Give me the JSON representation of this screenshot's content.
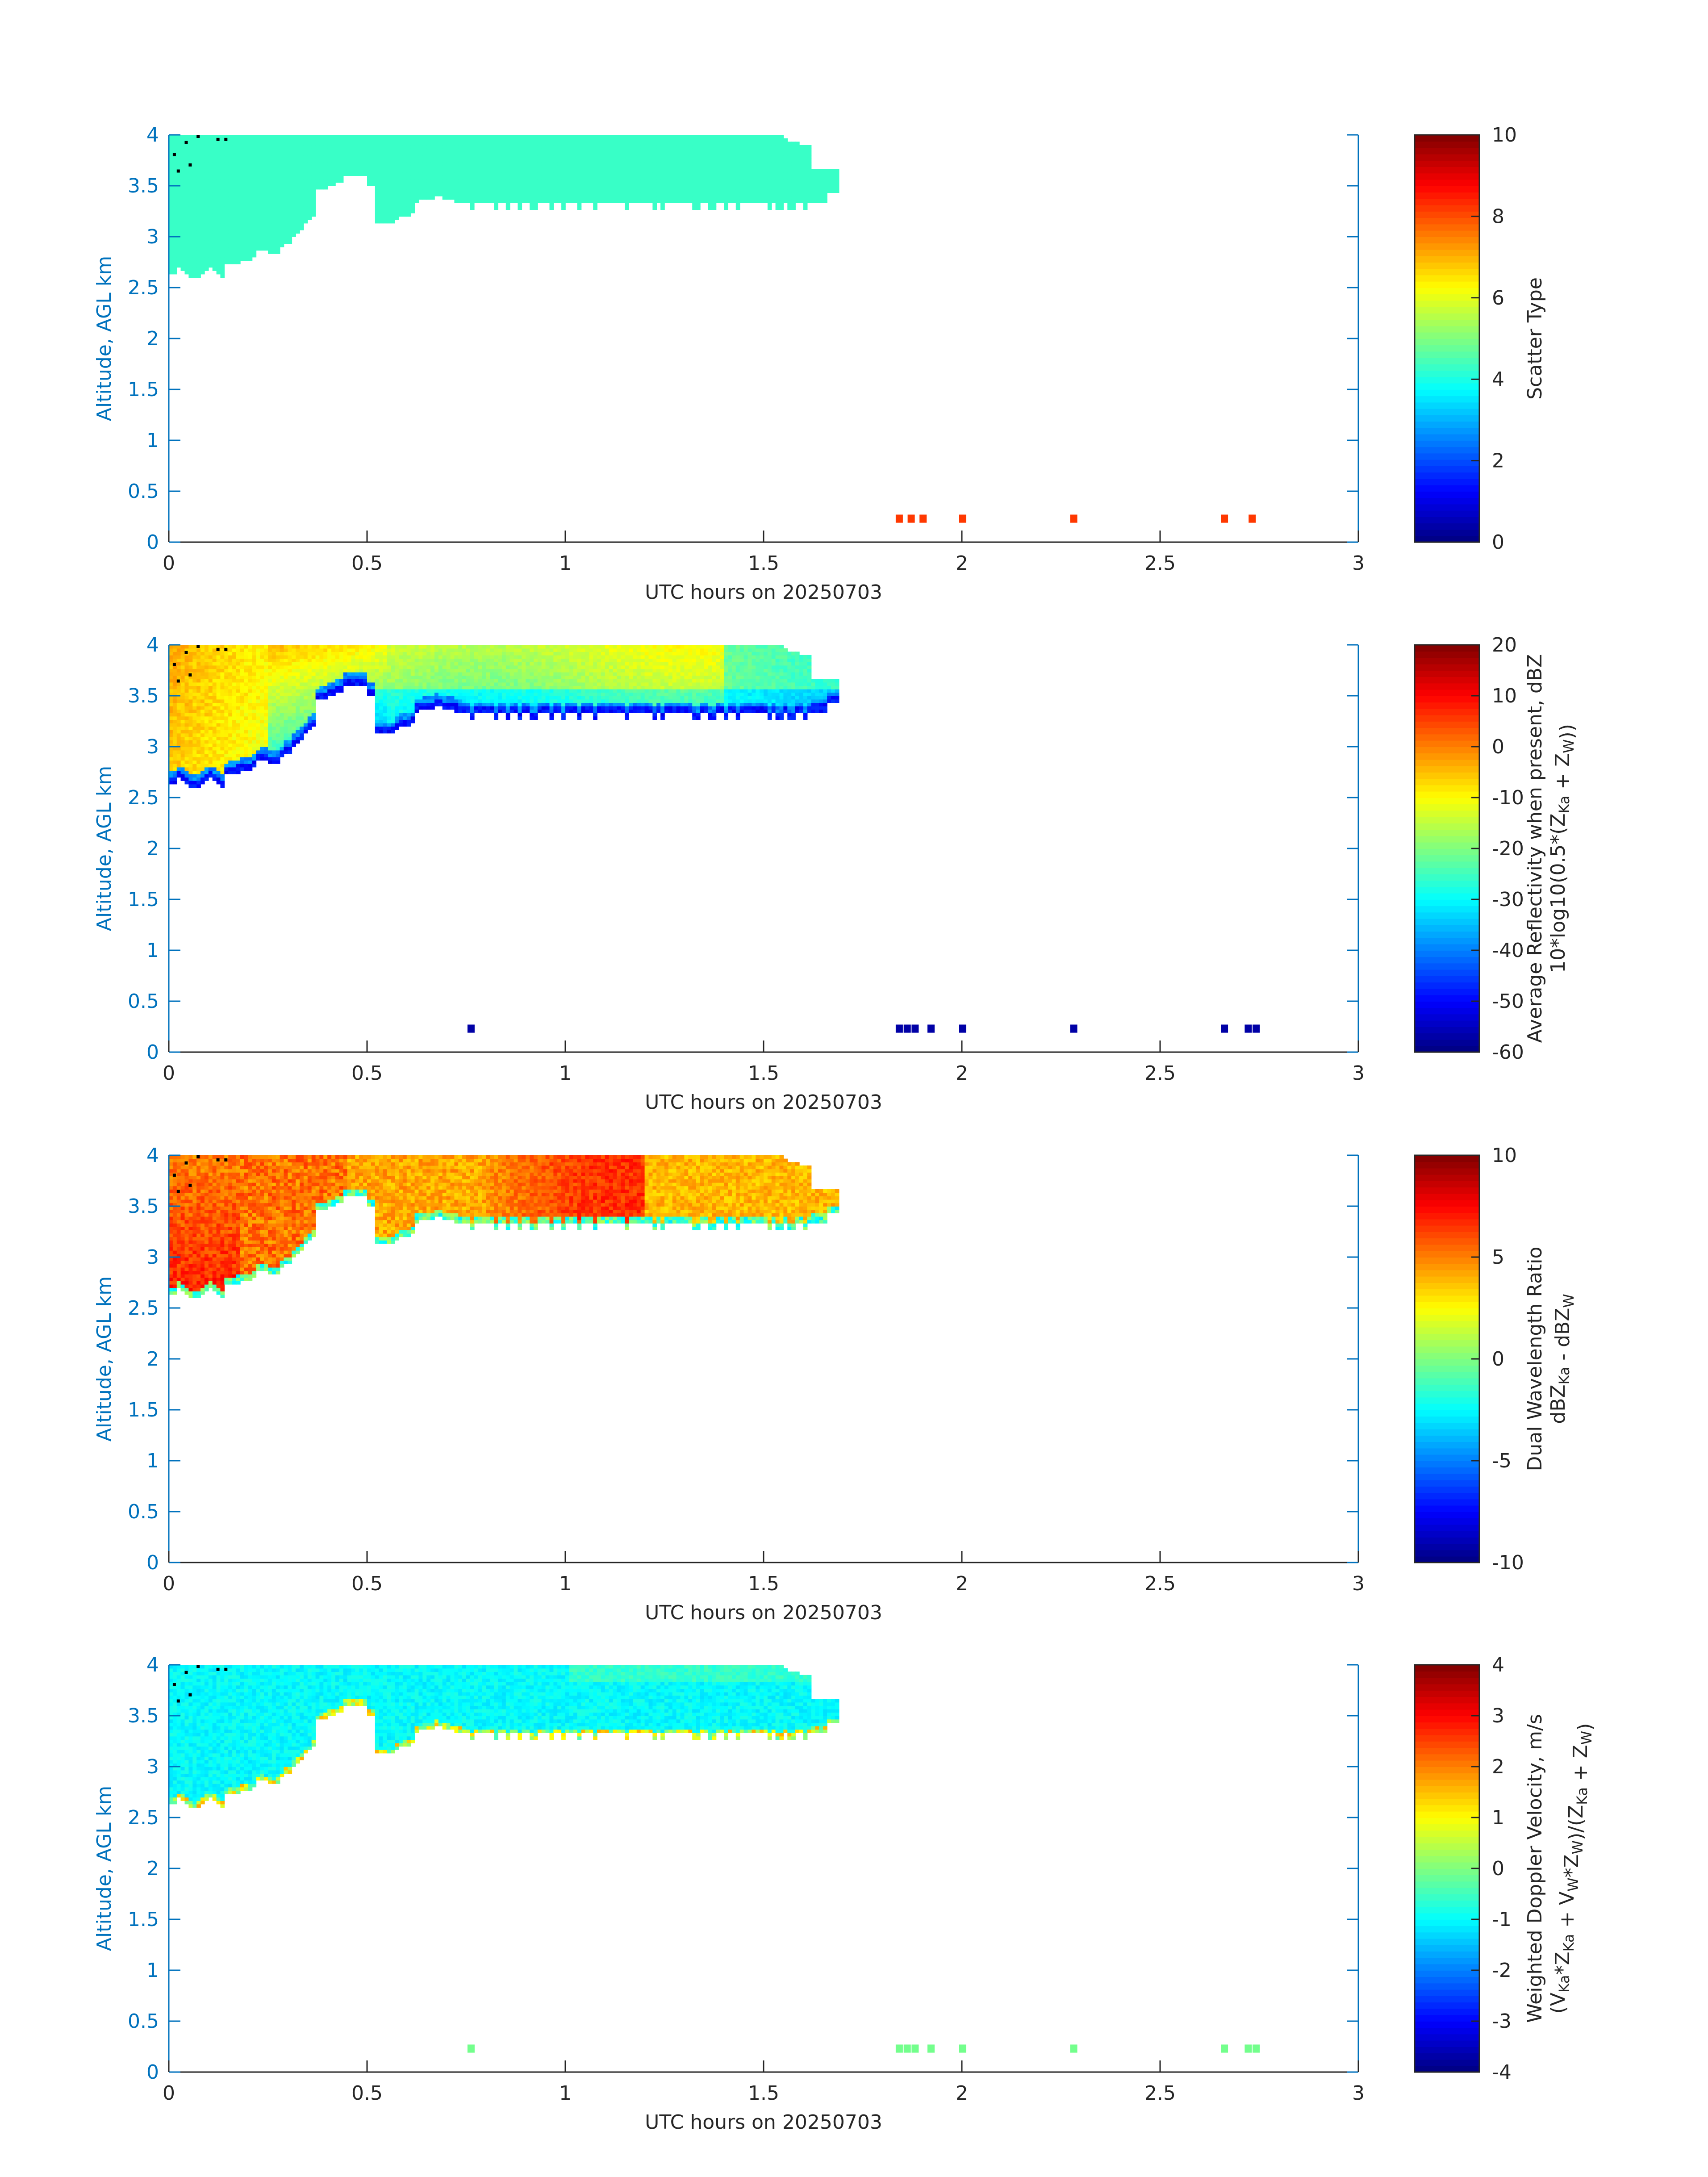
{
  "figure": {
    "panel_count": 4
  },
  "colors": {
    "axis_blue": "#0072BD",
    "axis_black": "#262626",
    "scatter_cyan": "#1AFFD8",
    "scatter_orange": "#FF3C14"
  },
  "chart_data": [
    {
      "type": "heatmap",
      "id": "scatter-type",
      "title": "",
      "xlabel": "UTC hours on 20250703",
      "ylabel": "Altitude, AGL km",
      "xlim": [
        0,
        3
      ],
      "ylim": [
        0,
        4
      ],
      "xticks": [
        "0",
        "0.5",
        "1",
        "1.5",
        "2",
        "2.5",
        "3"
      ],
      "yticks": [
        "0",
        "0.5",
        "1",
        "1.5",
        "2",
        "2.5",
        "3",
        "3.5",
        "4"
      ],
      "colorbar": {
        "label_lines": [
          "Scatter Type"
        ],
        "ticks": [
          "0",
          "2",
          "4",
          "6",
          "8",
          "10"
        ],
        "range": [
          0,
          10
        ]
      },
      "field": "scatter",
      "cloud_value": 4.3,
      "surface_value": 8.2,
      "surface_times": [
        1.84,
        1.87,
        1.9,
        2.0,
        2.28,
        2.66,
        2.73
      ]
    },
    {
      "type": "heatmap",
      "id": "reflectivity",
      "title": "",
      "xlabel": "UTC hours on 20250703",
      "ylabel": "Altitude, AGL km",
      "xlim": [
        0,
        3
      ],
      "ylim": [
        0,
        4
      ],
      "xticks": [
        "0",
        "0.5",
        "1",
        "1.5",
        "2",
        "2.5",
        "3"
      ],
      "yticks": [
        "0",
        "0.5",
        "1",
        "1.5",
        "2",
        "2.5",
        "3",
        "3.5",
        "4"
      ],
      "colorbar": {
        "label_lines": [
          "Average Reflectivity when present, dBZ",
          "10*log10(0.5*(Z_{Ka} + Z_{W}))"
        ],
        "ticks": [
          "-60",
          "-50",
          "-40",
          "-30",
          "-20",
          "-10",
          "0",
          "10",
          "20"
        ],
        "range": [
          -60,
          20
        ]
      },
      "field": "reflectivity",
      "surface_value": -57,
      "surface_times": [
        0.76,
        1.84,
        1.86,
        1.88,
        1.92,
        2.0,
        2.28,
        2.66,
        2.72,
        2.74
      ]
    },
    {
      "type": "heatmap",
      "id": "dwr",
      "title": "",
      "xlabel": "UTC hours on 20250703",
      "ylabel": "Altitude, AGL km",
      "xlim": [
        0,
        3
      ],
      "ylim": [
        0,
        4
      ],
      "xticks": [
        "0",
        "0.5",
        "1",
        "1.5",
        "2",
        "2.5",
        "3"
      ],
      "yticks": [
        "0",
        "0.5",
        "1",
        "1.5",
        "2",
        "2.5",
        "3",
        "3.5",
        "4"
      ],
      "colorbar": {
        "label_lines": [
          "Dual Wavelength Ratio",
          "dBZ_{Ka} - dBZ_{W}"
        ],
        "ticks": [
          "-10",
          "-5",
          "0",
          "5",
          "10"
        ],
        "range": [
          -10,
          10
        ]
      },
      "field": "dwr",
      "surface_times": []
    },
    {
      "type": "heatmap",
      "id": "doppler",
      "title": "",
      "xlabel": "UTC hours on 20250703",
      "ylabel": "Altitude, AGL km",
      "xlim": [
        0,
        3
      ],
      "ylim": [
        0,
        4
      ],
      "xticks": [
        "0",
        "0.5",
        "1",
        "1.5",
        "2",
        "2.5",
        "3"
      ],
      "yticks": [
        "0",
        "0.5",
        "1",
        "1.5",
        "2",
        "2.5",
        "3",
        "3.5",
        "4"
      ],
      "colorbar": {
        "label_lines": [
          "Weighted Doppler Velocity, m/s",
          "(V_{Ka}*Z_{Ka} + V_{W}*Z_{W})/(Z_{Ka} + Z_{W})"
        ],
        "ticks": [
          "-4",
          "-3",
          "-2",
          "-1",
          "0",
          "1",
          "2",
          "3",
          "4"
        ],
        "range": [
          -4,
          4
        ]
      },
      "field": "doppler",
      "surface_value": -0.1,
      "surface_times": [
        0.76,
        1.84,
        1.86,
        1.88,
        1.92,
        2.0,
        2.28,
        2.66,
        2.72,
        2.74
      ]
    }
  ]
}
